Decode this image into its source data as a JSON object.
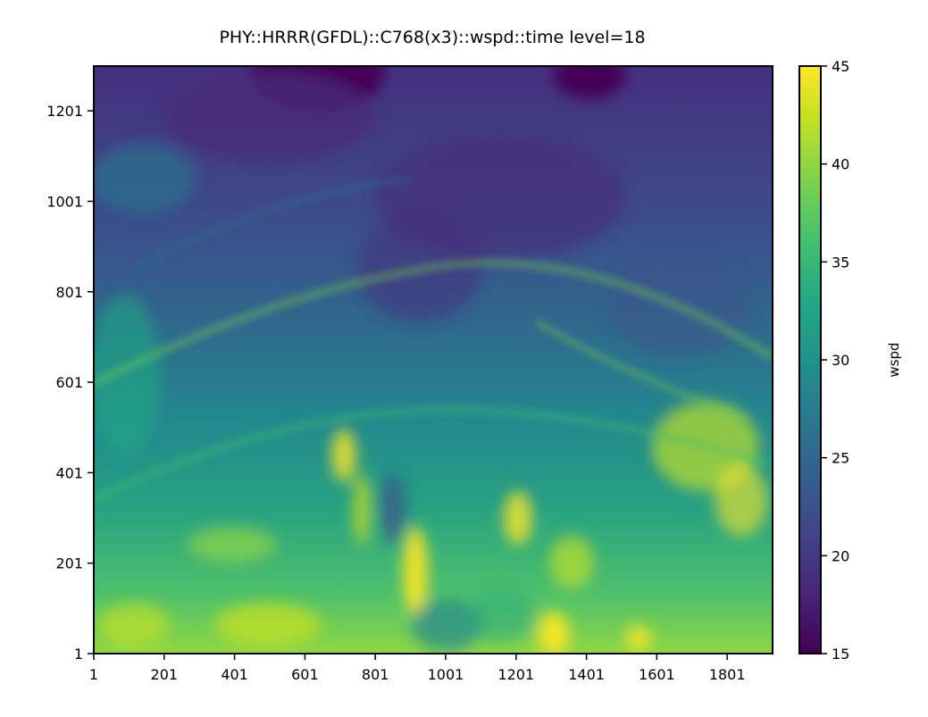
{
  "chart_data": {
    "type": "heatmap",
    "title": "PHY::HRRR(GFDL)::C768(x3)::wspd::time level=18",
    "xlabel": "",
    "ylabel": "",
    "x_ticks": [
      "1",
      "201",
      "401",
      "601",
      "801",
      "1001",
      "1201",
      "1401",
      "1601",
      "1801"
    ],
    "y_ticks": [
      "1",
      "201",
      "401",
      "601",
      "801",
      "1001",
      "1201"
    ],
    "xlim": [
      1,
      1930
    ],
    "ylim": [
      1,
      1300
    ],
    "colorbar": {
      "label": "wspd",
      "colormap": "viridis",
      "range": [
        15,
        45
      ],
      "ticks": [
        "15",
        "20",
        "25",
        "30",
        "35",
        "40",
        "45"
      ]
    },
    "grid": false,
    "field_description": [
      {
        "region": "top (y 1000-1300)",
        "wspd_approx": 18
      },
      {
        "region": "upper-middle (y 700-1000)",
        "wspd_approx": 22
      },
      {
        "region": "middle (y 400-700)",
        "wspd_approx": 28
      },
      {
        "region": "bottom (y 1-400)",
        "wspd_approx": 36
      }
    ]
  }
}
